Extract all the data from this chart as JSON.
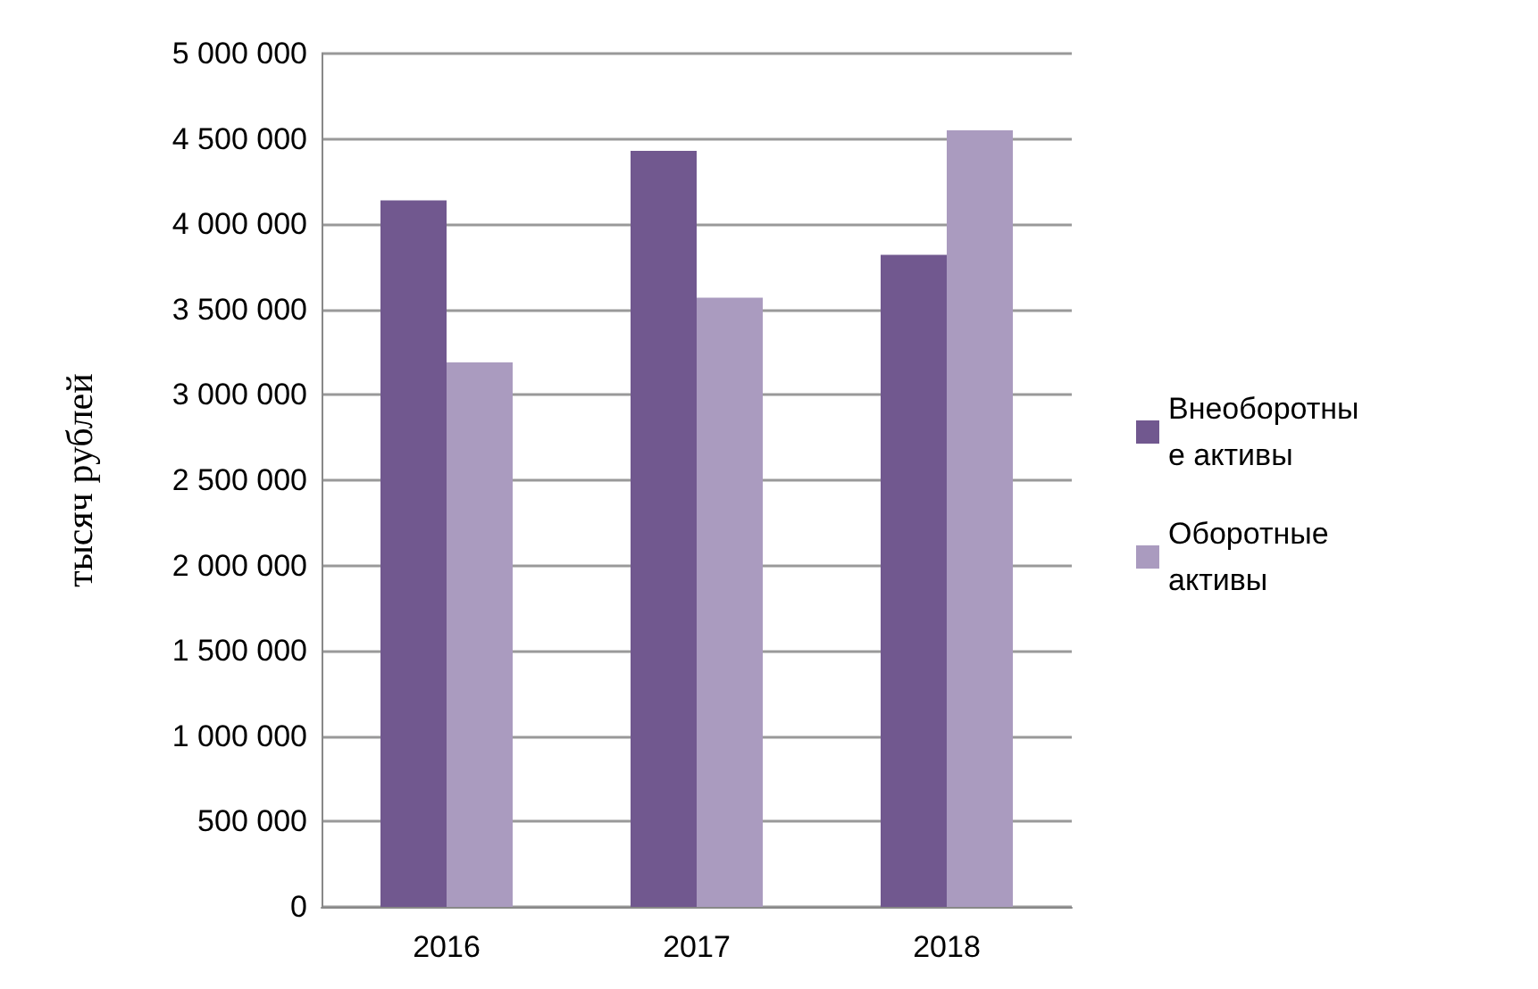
{
  "chart_data": {
    "type": "bar",
    "ylabel": "тысяч рублей",
    "categories": [
      "2016",
      "2017",
      "2018"
    ],
    "series": [
      {
        "name": "Внеоборотные активы",
        "color": "#71588f",
        "values": [
          4140000,
          4430000,
          3820000
        ]
      },
      {
        "name": "Оборотные активы",
        "color": "#aa9bbf",
        "values": [
          3190000,
          3570000,
          4550000
        ]
      }
    ],
    "ylim": [
      0,
      5000000
    ],
    "yticks": [
      0,
      {
        "value": 500000,
        "label": "500 000"
      },
      {
        "value": 1000000,
        "label": "1 000 000"
      },
      {
        "value": 1500000,
        "label": "1 500 000"
      },
      {
        "value": 2000000,
        "label": "2 000 000"
      },
      {
        "value": 2500000,
        "label": "2 500 000"
      },
      {
        "value": 3000000,
        "label": "3 000 000"
      },
      {
        "value": 3500000,
        "label": "3 500 000"
      },
      {
        "value": 4000000,
        "label": "4 000 000"
      },
      {
        "value": 4500000,
        "label": "4 500 000"
      },
      {
        "value": 5000000,
        "label": "5 000 000"
      }
    ],
    "grid": "y",
    "legend": "right"
  }
}
